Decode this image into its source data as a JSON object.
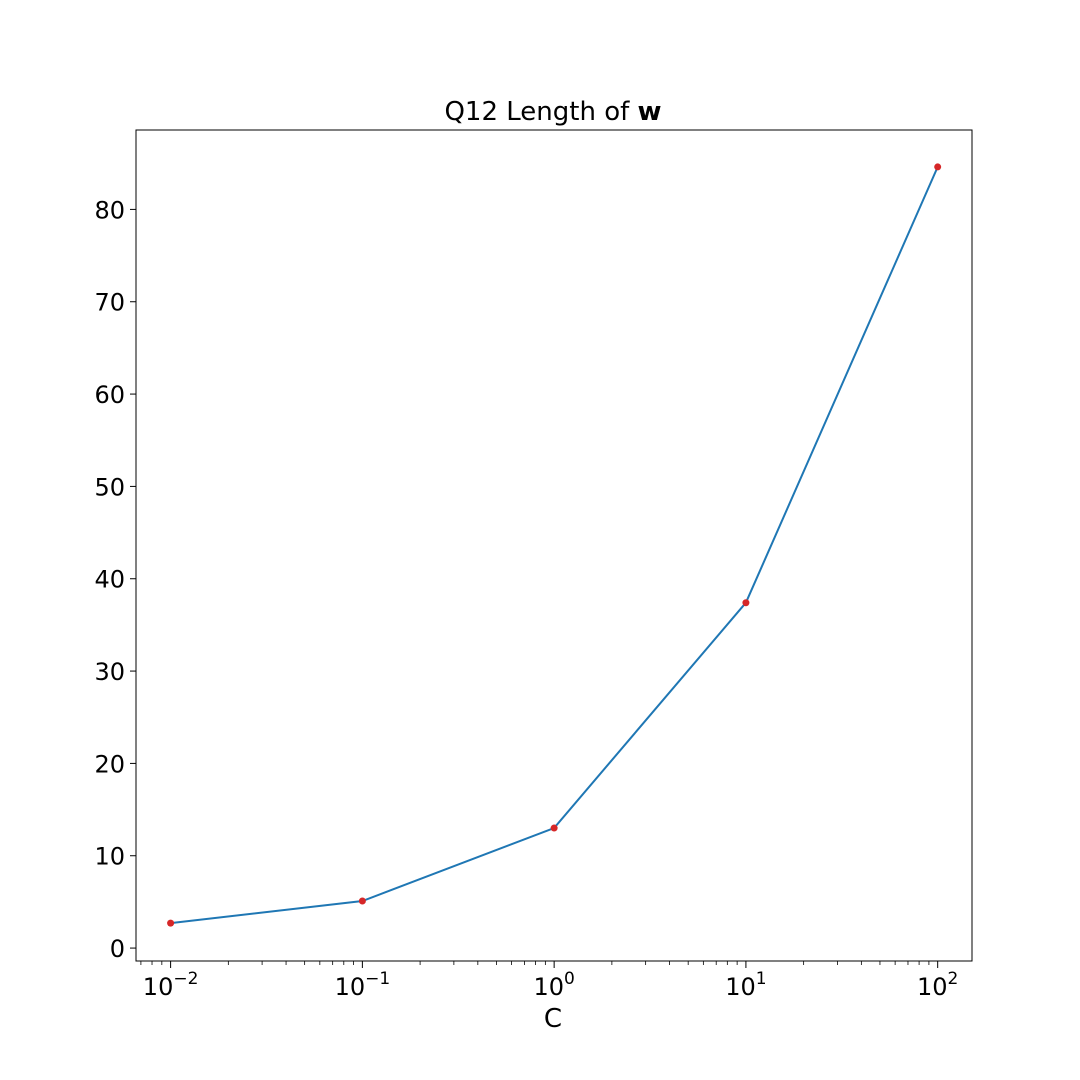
{
  "chart_data": {
    "type": "line",
    "title": "Q12 Length of ",
    "title_bold": "w",
    "xlabel": "C",
    "ylabel": "",
    "x_scale": "log",
    "xlim": [
      0.0066,
      151
    ],
    "ylim": [
      -1.4,
      88.6
    ],
    "x_ticks": [
      {
        "value": 0.01,
        "base": "10",
        "exp": "−2"
      },
      {
        "value": 0.1,
        "base": "10",
        "exp": "−1"
      },
      {
        "value": 1,
        "base": "10",
        "exp": "0"
      },
      {
        "value": 10,
        "base": "10",
        "exp": "1"
      },
      {
        "value": 100,
        "base": "10",
        "exp": "2"
      }
    ],
    "y_ticks": [
      0,
      10,
      20,
      30,
      40,
      50,
      60,
      70,
      80
    ],
    "grid": false,
    "legend": "none",
    "x": [
      0.01,
      0.1,
      1,
      10,
      100
    ],
    "series": [
      {
        "values": [
          2.7,
          5.1,
          13.0,
          37.4,
          84.6
        ],
        "line_color": "#1f77b4",
        "marker_color": "#d62728"
      }
    ]
  }
}
